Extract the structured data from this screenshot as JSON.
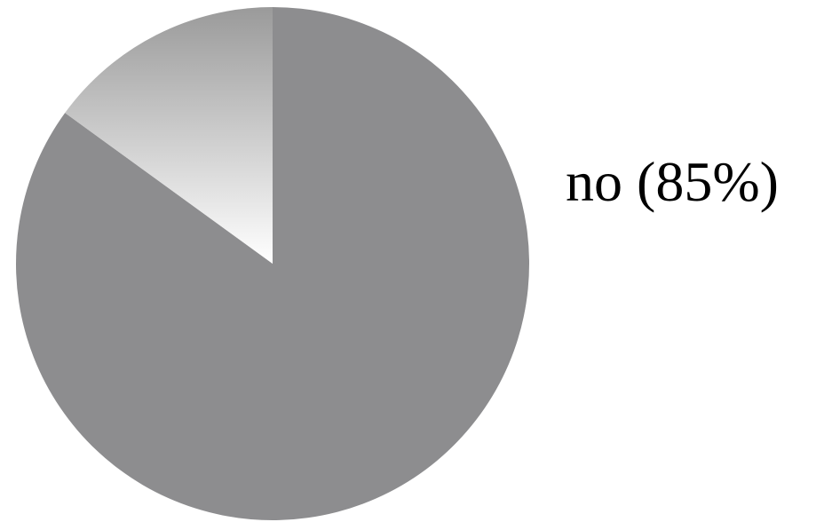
{
  "chart_data": {
    "type": "pie",
    "values": [
      85,
      15
    ],
    "value_labels": [
      "no (85%)",
      null
    ],
    "colors": [
      "#8d8d8f",
      "#ffffff"
    ]
  }
}
